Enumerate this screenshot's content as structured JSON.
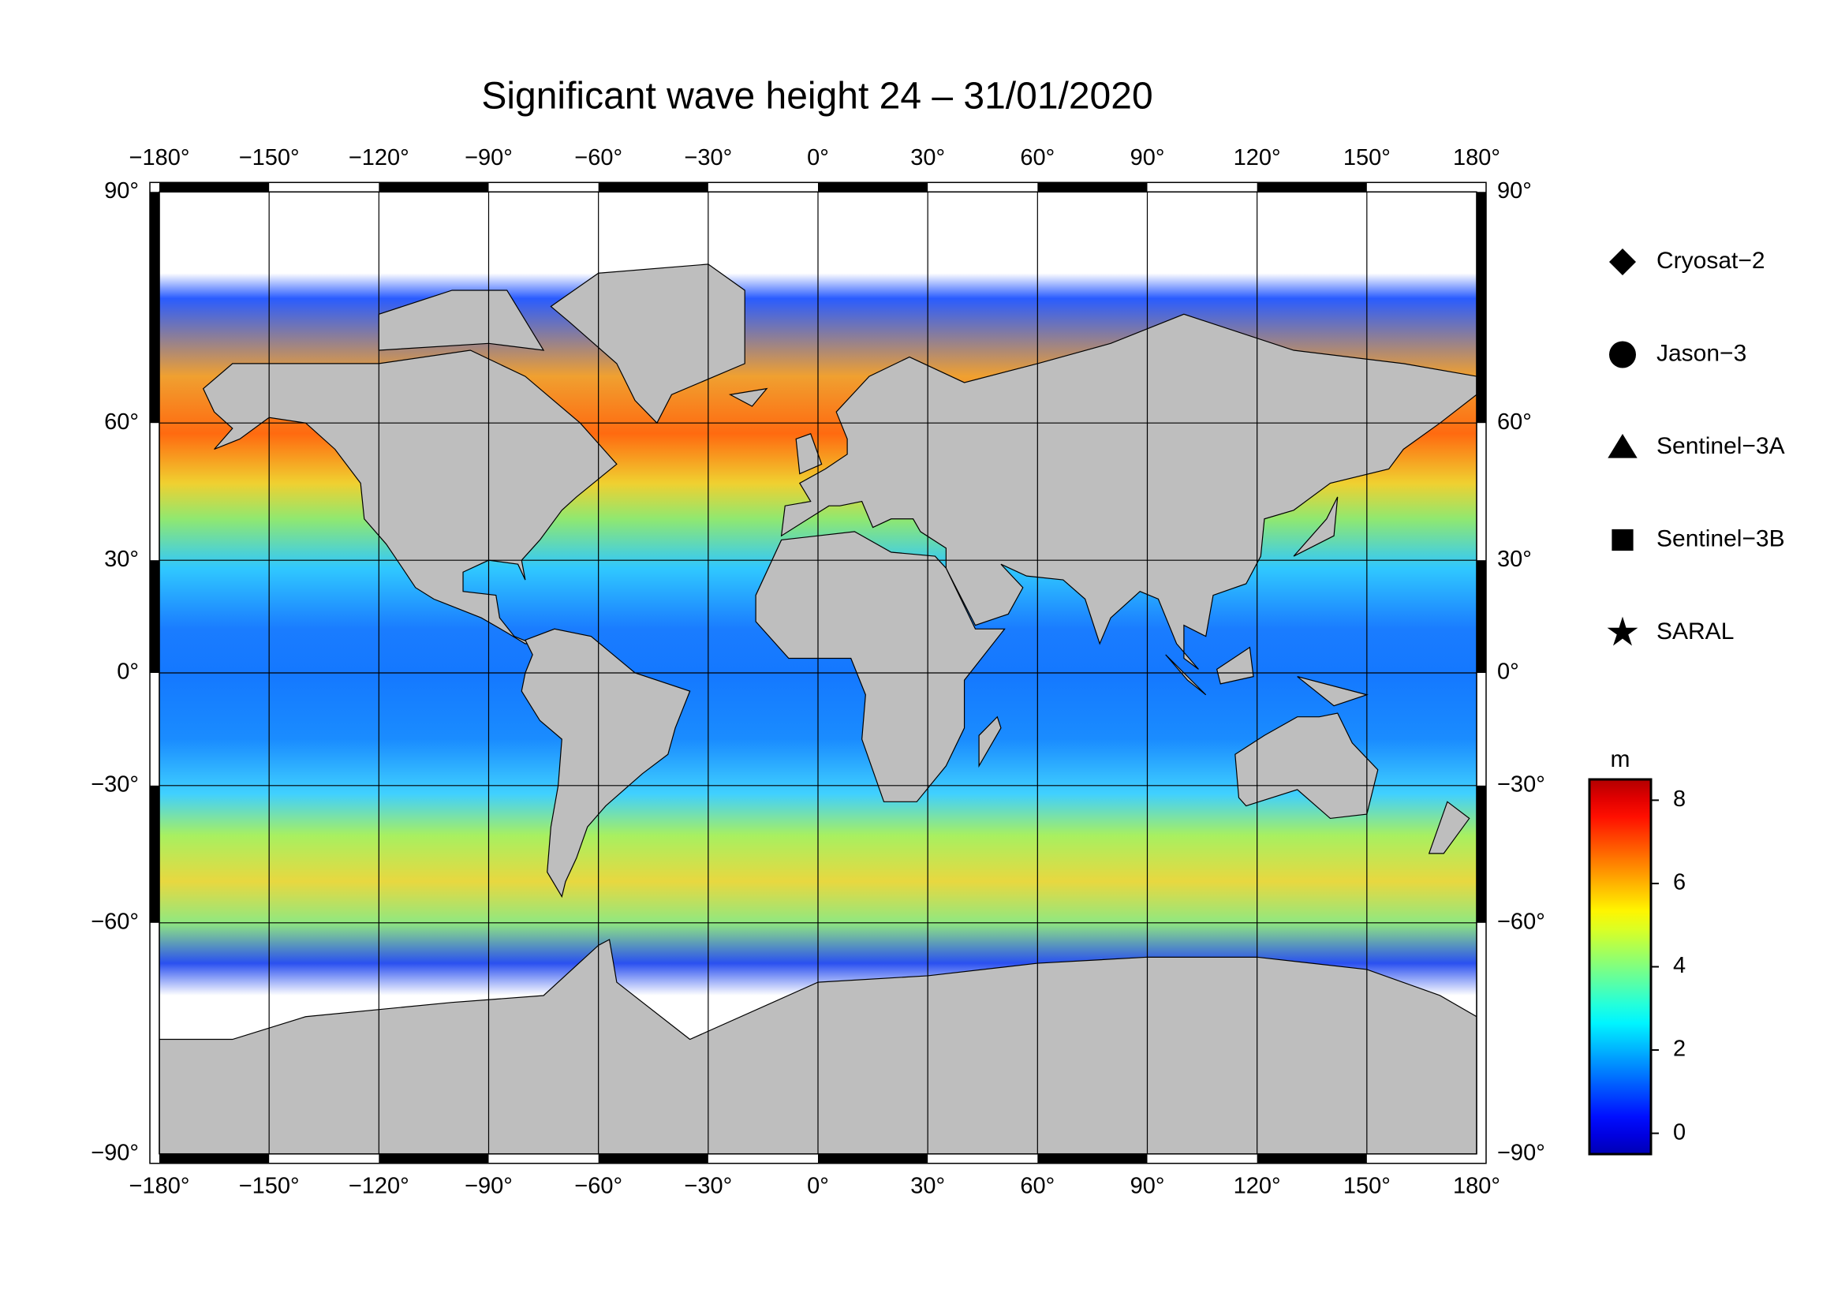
{
  "chart_data": {
    "type": "map",
    "title": "Significant wave height 24 – 31/01/2020",
    "projection": "miller",
    "xlim": [
      -180,
      180
    ],
    "ylim": [
      -90,
      90
    ],
    "xticks": [
      {
        "value": -180,
        "label": "−180°"
      },
      {
        "value": -150,
        "label": "−150°"
      },
      {
        "value": -120,
        "label": "−120°"
      },
      {
        "value": -90,
        "label": "−90°"
      },
      {
        "value": -60,
        "label": "−60°"
      },
      {
        "value": -30,
        "label": "−30°"
      },
      {
        "value": 0,
        "label": "0°"
      },
      {
        "value": 30,
        "label": "30°"
      },
      {
        "value": 60,
        "label": "60°"
      },
      {
        "value": 90,
        "label": "90°"
      },
      {
        "value": 120,
        "label": "120°"
      },
      {
        "value": 150,
        "label": "150°"
      },
      {
        "value": 180,
        "label": "180°"
      }
    ],
    "yticks": [
      {
        "value": 90,
        "label": "90°"
      },
      {
        "value": 60,
        "label": "60°"
      },
      {
        "value": 30,
        "label": "30°"
      },
      {
        "value": 0,
        "label": "0°"
      },
      {
        "value": -30,
        "label": "−30°"
      },
      {
        "value": -60,
        "label": "−60°"
      },
      {
        "value": -90,
        "label": "−90°"
      }
    ],
    "grid": true,
    "legend": {
      "position": "right",
      "entries": [
        {
          "name": "Cryosat−2",
          "marker": "diamond"
        },
        {
          "name": "Jason−3",
          "marker": "circle"
        },
        {
          "name": "Sentinel−3A",
          "marker": "triangle"
        },
        {
          "name": "Sentinel−3B",
          "marker": "square"
        },
        {
          "name": "SARAL",
          "marker": "star"
        }
      ]
    },
    "colorbar": {
      "label": "m",
      "clim": [
        -0.5,
        8.5
      ],
      "ticks": [
        0,
        2,
        4,
        6,
        8
      ],
      "colormap": "jet"
    }
  }
}
